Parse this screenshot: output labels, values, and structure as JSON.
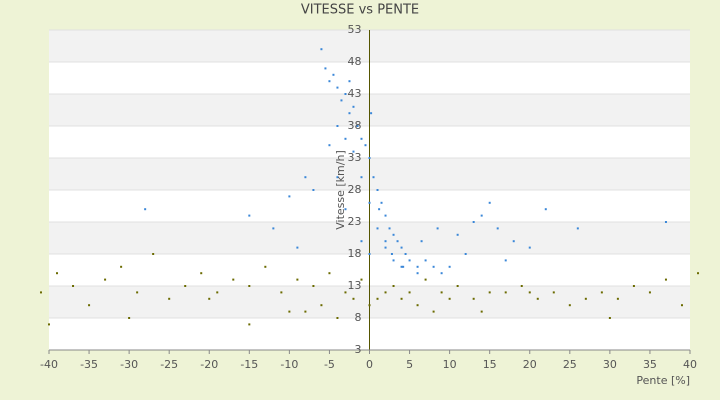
{
  "chart_data": {
    "type": "scatter",
    "title": "VITESSE vs PENTE",
    "x_label": "Pente [%]",
    "y_label": "Vitesse [km/h]",
    "xlim": [
      -40,
      40
    ],
    "xticks": [
      -40,
      -35,
      -30,
      -25,
      -20,
      -15,
      -10,
      -5,
      0,
      5,
      10,
      15,
      20,
      25,
      30,
      35,
      40
    ],
    "ylim": [
      3,
      53
    ],
    "yticks": [
      3,
      8,
      13,
      18,
      23,
      28,
      33,
      38,
      43,
      48,
      53
    ],
    "grid": true,
    "series": [
      {
        "color": "#3a87d8",
        "x": [
          -6,
          -5.5,
          -5,
          -4.5,
          -4,
          -3.5,
          -3,
          -2.5,
          -2,
          -1.5,
          -1,
          -0.5,
          0,
          0.5,
          1,
          1.5,
          2,
          2.5,
          3,
          3.5,
          4,
          4.5,
          5,
          6,
          7,
          8,
          9,
          10,
          12,
          14,
          16,
          18,
          20,
          -7,
          -8,
          -10,
          -12,
          -3,
          -2,
          -1,
          0,
          1,
          2,
          3,
          -4,
          -2.5,
          0.2,
          1.2,
          2.8,
          4.2,
          6.5,
          8.5,
          11,
          13,
          15,
          17,
          22,
          26,
          -5,
          -4,
          -3,
          -1,
          0,
          2,
          4,
          6,
          -9,
          -15,
          37,
          -28
        ],
        "y": [
          50,
          47,
          45,
          46,
          44,
          42,
          43,
          40,
          41,
          38,
          36,
          35,
          33,
          30,
          28,
          26,
          24,
          22,
          21,
          20,
          19,
          18,
          17,
          16,
          17,
          16,
          15,
          16,
          18,
          24,
          22,
          20,
          19,
          28,
          30,
          27,
          22,
          36,
          34,
          30,
          26,
          22,
          19,
          17,
          38,
          45,
          40,
          25,
          18,
          16,
          20,
          22,
          21,
          23,
          26,
          17,
          25,
          22,
          35,
          30,
          25,
          20,
          18,
          20,
          16,
          15,
          19,
          24,
          23,
          25
        ]
      },
      {
        "color": "#6b6b00",
        "x": [
          -41,
          -39,
          -37,
          -35,
          -33,
          -31,
          -29,
          -27,
          -25,
          -23,
          -21,
          -19,
          -17,
          -15,
          -13,
          -11,
          -9,
          -7,
          -5,
          -3,
          -1,
          1,
          3,
          5,
          7,
          9,
          11,
          13,
          15,
          17,
          19,
          21,
          23,
          25,
          27,
          29,
          31,
          33,
          35,
          37,
          39,
          41,
          -20,
          -10,
          -6,
          -2,
          2,
          6,
          10,
          14,
          -30,
          -15,
          -8,
          -4,
          0,
          4,
          8,
          20,
          30,
          -40
        ],
        "y": [
          12,
          15,
          13,
          10,
          14,
          16,
          12,
          18,
          11,
          13,
          15,
          12,
          14,
          13,
          16,
          12,
          14,
          13,
          15,
          12,
          14,
          11,
          13,
          12,
          14,
          12,
          13,
          11,
          12,
          12,
          13,
          11,
          12,
          10,
          11,
          12,
          11,
          13,
          12,
          14,
          10,
          15,
          11,
          9,
          10,
          11,
          12,
          10,
          11,
          9,
          8,
          7,
          9,
          8,
          10,
          11,
          9,
          12,
          8,
          7
        ]
      }
    ]
  }
}
